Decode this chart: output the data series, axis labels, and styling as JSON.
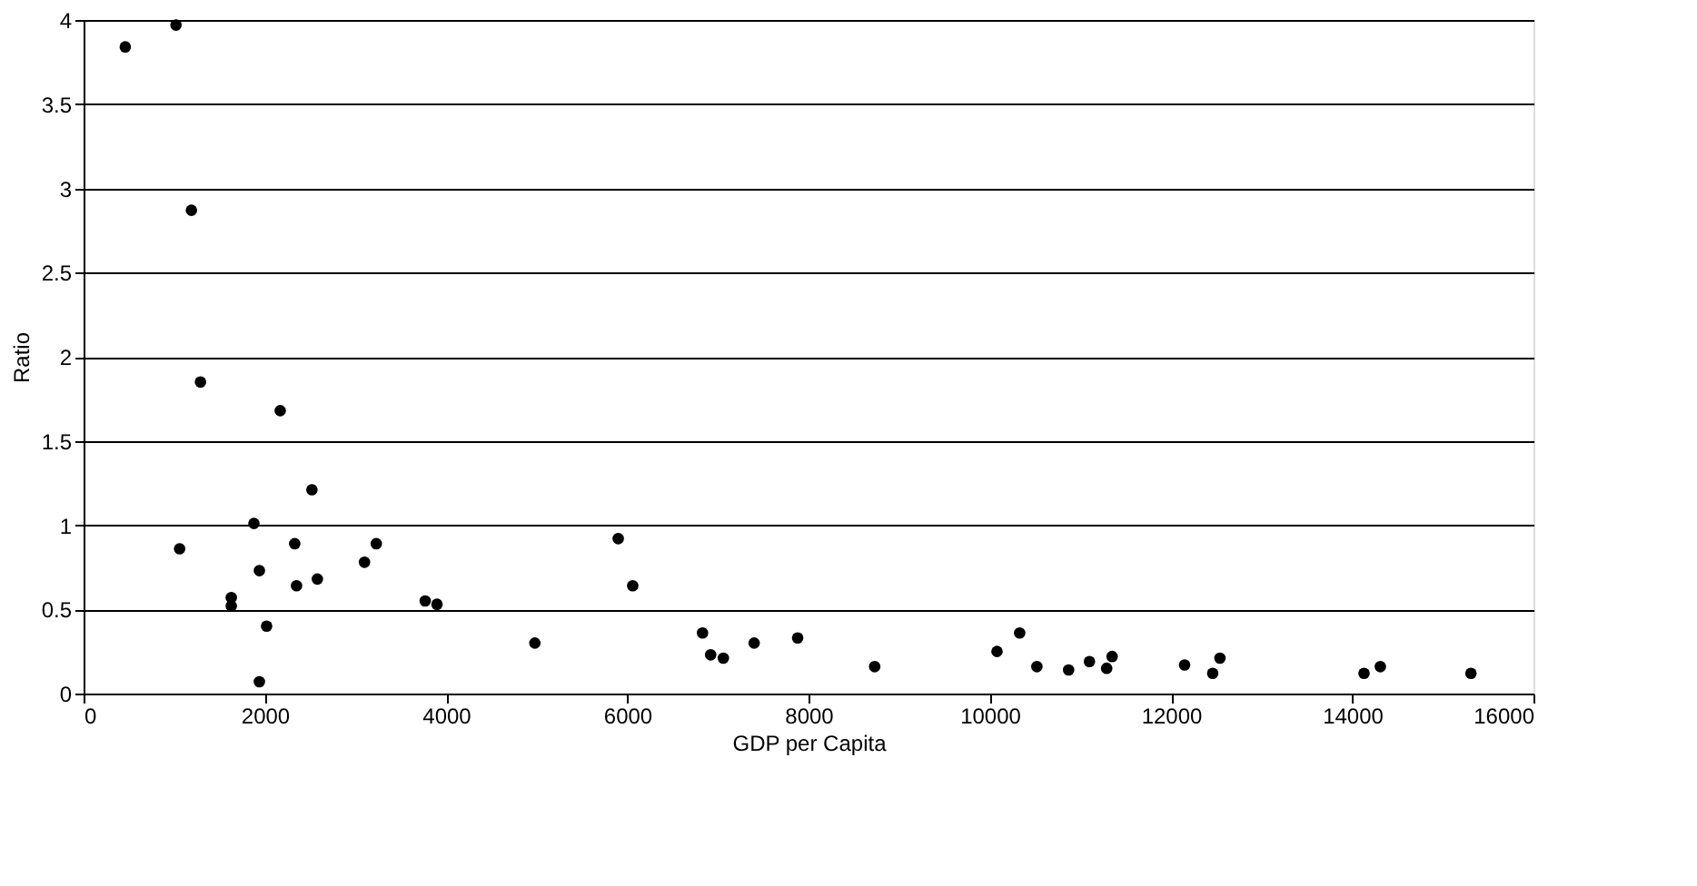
{
  "chart_data": {
    "type": "scatter",
    "xlabel": "GDP per Capita",
    "ylabel": "Ratio",
    "x": [
      460,
      1020,
      1190,
      1290,
      2170,
      2520,
      1880,
      1060,
      2330,
      3230,
      1940,
      3100,
      2350,
      2580,
      1630,
      1630,
      2020,
      1940,
      3770,
      3900,
      4980,
      5900,
      6060,
      6830,
      6920,
      7060,
      7400,
      7880,
      8730,
      10080,
      10330,
      10520,
      10870,
      11100,
      11290,
      11350,
      12150,
      12460,
      12540,
      14130,
      14310,
      15310
    ],
    "values": [
      3.84,
      3.97,
      2.87,
      1.85,
      1.68,
      1.21,
      1.01,
      0.86,
      0.89,
      0.89,
      0.73,
      0.78,
      0.64,
      0.68,
      0.57,
      0.52,
      0.4,
      0.07,
      0.55,
      0.53,
      0.3,
      0.92,
      0.64,
      0.36,
      0.23,
      0.21,
      0.3,
      0.33,
      0.16,
      0.25,
      0.36,
      0.16,
      0.14,
      0.19,
      0.15,
      0.22,
      0.17,
      0.12,
      0.21,
      0.12,
      0.16,
      0.12
    ],
    "color": "#000000",
    "marker": "circle",
    "grid": "y",
    "xlim": [
      0,
      16000
    ],
    "xticks": [
      0,
      2000,
      4000,
      6000,
      8000,
      10000,
      12000,
      14000,
      16000
    ],
    "ylim": [
      0,
      4
    ],
    "yticks": [
      0,
      0.5,
      1,
      1.5,
      2,
      2.5,
      3,
      3.5,
      4
    ]
  }
}
